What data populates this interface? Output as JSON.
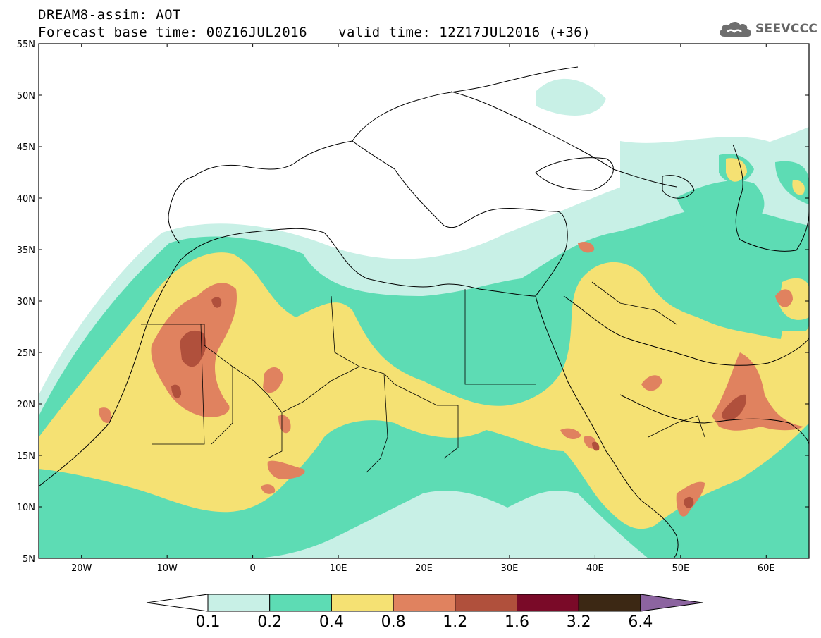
{
  "header": {
    "title_line1": "DREAM8-assim: AOT",
    "title_line2": "Forecast base time: 00Z16JUL2016",
    "valid_time": "valid time: 12Z17JUL2016 (+36)"
  },
  "logo": {
    "text": "SEEVCCC",
    "icon": "cloud-icon"
  },
  "map": {
    "lat_labels": [
      "55N",
      "50N",
      "45N",
      "40N",
      "35N",
      "30N",
      "25N",
      "20N",
      "15N",
      "10N",
      "5N"
    ],
    "lon_labels": [
      "20W",
      "10W",
      "0",
      "10E",
      "20E",
      "30E",
      "40E",
      "50E",
      "60E"
    ],
    "lat_range": [
      5,
      55
    ],
    "lon_range": [
      -25,
      65
    ]
  },
  "colorbar": {
    "labels": [
      "0.1",
      "0.2",
      "0.4",
      "0.8",
      "1.2",
      "1.6",
      "3.2",
      "6.4"
    ],
    "colors": [
      "#ffffff",
      "#c8f0e6",
      "#5ddcb4",
      "#f5e173",
      "#e0825f",
      "#b0503c",
      "#7a0a28",
      "#3c2814",
      "#8c64a0"
    ]
  },
  "colors": {
    "level_0.1": "#c8f0e6",
    "level_0.2": "#5ddcb4",
    "level_0.4": "#f5e173",
    "level_0.8": "#e0825f",
    "level_1.2": "#b0503c",
    "level_1.6": "#7a0a28",
    "level_3.2": "#3c2814",
    "level_6.4": "#8c64a0"
  }
}
